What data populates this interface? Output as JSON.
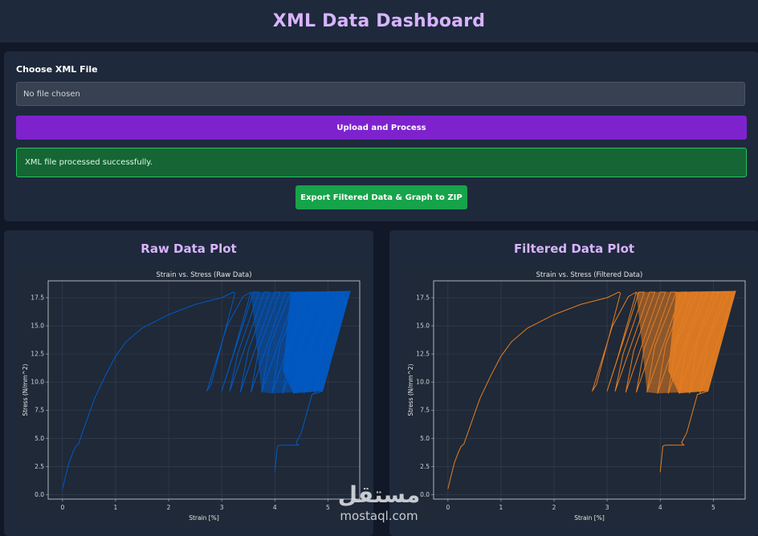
{
  "header": {
    "title": "XML Data Dashboard"
  },
  "upload": {
    "label": "Choose XML File",
    "file_status": "No file chosen",
    "upload_button": "Upload and Process",
    "success_message": "XML file processed successfully.",
    "export_button": "Export Filtered Data & Graph to ZIP"
  },
  "plots": {
    "raw": {
      "panel_title": "Raw Data Plot"
    },
    "filtered": {
      "panel_title": "Filtered Data Plot"
    }
  },
  "watermark": {
    "logo": "مستقل",
    "text": "mostaql.com"
  },
  "colors": {
    "raw_line": "#005ac8",
    "filtered_line": "#e67e22",
    "accent": "#d8b4fe"
  },
  "chart_data": [
    {
      "type": "line",
      "title": "Strain vs. Stress (Raw Data)",
      "xlabel": "Strain [%]",
      "ylabel": "Stress (N/mm^2)",
      "xlim": [
        -0.27,
        5.6
      ],
      "ylim": [
        -0.4,
        19.0
      ],
      "xticks": [
        0,
        1,
        2,
        3,
        4,
        5
      ],
      "yticks": [
        0.0,
        2.5,
        5.0,
        7.5,
        10.0,
        12.5,
        15.0,
        17.5
      ],
      "xtick_labels": [
        "0",
        "1",
        "2",
        "3",
        "4",
        "5"
      ],
      "ytick_labels": [
        "0.0",
        "2.5",
        "5.0",
        "7.5",
        "10.0",
        "12.5",
        "15.0",
        "17.5"
      ],
      "grid": true,
      "series": [
        {
          "color": "#005ac8",
          "x": [
            0,
            0.05,
            0.12,
            0.2,
            0.25,
            0.28,
            0.3,
            0.45,
            0.6,
            0.8,
            1.0,
            1.2,
            1.5,
            2.0,
            2.5,
            3.0,
            3.22,
            3.25,
            2.9,
            2.8,
            2.72,
            3.1,
            3.4,
            3.55,
            3.2,
            3.0,
            3.6,
            3.7,
            3.3,
            3.15,
            3.8,
            3.9,
            3.5,
            3.35,
            4.0,
            4.1,
            3.7,
            3.55,
            4.2,
            4.3,
            3.9,
            3.75,
            4.4,
            4.5,
            4.1,
            3.95,
            4.6,
            4.7,
            4.3,
            4.15,
            4.8,
            4.9,
            4.5,
            4.35,
            5.0,
            5.1,
            4.7,
            4.55,
            5.2,
            5.3,
            4.9,
            4.75,
            5.4,
            5.42,
            4.9,
            4.7,
            4.5,
            4.4,
            4.45,
            4.25,
            4.1,
            4.05,
            4.0
          ],
          "y": [
            0.5,
            1.5,
            2.8,
            3.8,
            4.3,
            4.4,
            4.5,
            6.5,
            8.5,
            10.5,
            12.3,
            13.6,
            14.8,
            16.0,
            16.9,
            17.5,
            18.0,
            17.9,
            11.6,
            9.8,
            9.2,
            15.0,
            17.6,
            18.0,
            12.2,
            9.2,
            18.0,
            18.0,
            12.5,
            9.2,
            18.0,
            18.0,
            12.8,
            9.1,
            18.0,
            18.0,
            13.0,
            9.1,
            18.0,
            18.0,
            13.2,
            9.1,
            18.0,
            18.0,
            13.3,
            9.0,
            18.0,
            18.0,
            13.4,
            9.0,
            18.0,
            18.0,
            13.5,
            9.0,
            18.0,
            18.0,
            13.6,
            9.0,
            18.0,
            18.0,
            13.7,
            9.0,
            18.0,
            18.1,
            9.2,
            8.9,
            5.5,
            4.6,
            4.4,
            4.4,
            4.4,
            4.3,
            2.0
          ]
        }
      ]
    },
    {
      "type": "line",
      "title": "Strain vs. Stress (Filtered Data)",
      "xlabel": "Strain [%]",
      "ylabel": "Stress (N/mm^2)",
      "xlim": [
        -0.27,
        5.6
      ],
      "ylim": [
        -0.4,
        19.0
      ],
      "xticks": [
        0,
        1,
        2,
        3,
        4,
        5
      ],
      "yticks": [
        0.0,
        2.5,
        5.0,
        7.5,
        10.0,
        12.5,
        15.0,
        17.5
      ],
      "xtick_labels": [
        "0",
        "1",
        "2",
        "3",
        "4",
        "5"
      ],
      "ytick_labels": [
        "0.0",
        "2.5",
        "5.0",
        "7.5",
        "10.0",
        "12.5",
        "15.0",
        "17.5"
      ],
      "grid": true,
      "series": [
        {
          "color": "#e67e22",
          "x": [
            0,
            0.05,
            0.12,
            0.2,
            0.25,
            0.28,
            0.3,
            0.45,
            0.6,
            0.8,
            1.0,
            1.2,
            1.5,
            2.0,
            2.5,
            3.0,
            3.22,
            3.25,
            2.9,
            2.8,
            2.72,
            3.1,
            3.4,
            3.55,
            3.2,
            3.0,
            3.6,
            3.7,
            3.3,
            3.15,
            3.8,
            3.9,
            3.5,
            3.35,
            4.0,
            4.1,
            3.7,
            3.55,
            4.2,
            4.3,
            3.9,
            3.75,
            4.4,
            4.5,
            4.1,
            3.95,
            4.6,
            4.7,
            4.3,
            4.15,
            4.8,
            4.9,
            4.5,
            4.35,
            5.0,
            5.1,
            4.7,
            4.55,
            5.2,
            5.3,
            4.9,
            4.75,
            5.4,
            5.42,
            4.9,
            4.7,
            4.5,
            4.4,
            4.45,
            4.25,
            4.1,
            4.05,
            4.0
          ],
          "y": [
            0.5,
            1.5,
            2.8,
            3.8,
            4.3,
            4.4,
            4.5,
            6.5,
            8.5,
            10.5,
            12.3,
            13.6,
            14.8,
            16.0,
            16.9,
            17.5,
            18.0,
            17.9,
            11.6,
            9.8,
            9.2,
            15.0,
            17.6,
            18.0,
            12.2,
            9.2,
            18.0,
            18.0,
            12.5,
            9.2,
            18.0,
            18.0,
            12.8,
            9.1,
            18.0,
            18.0,
            13.0,
            9.1,
            18.0,
            18.0,
            13.2,
            9.1,
            18.0,
            18.0,
            13.3,
            9.0,
            18.0,
            18.0,
            13.4,
            9.0,
            18.0,
            18.0,
            13.5,
            9.0,
            18.0,
            18.0,
            13.6,
            9.0,
            18.0,
            18.0,
            13.7,
            9.0,
            18.0,
            18.1,
            9.2,
            8.9,
            5.5,
            4.6,
            4.4,
            4.4,
            4.4,
            4.3,
            2.0
          ]
        }
      ]
    }
  ]
}
